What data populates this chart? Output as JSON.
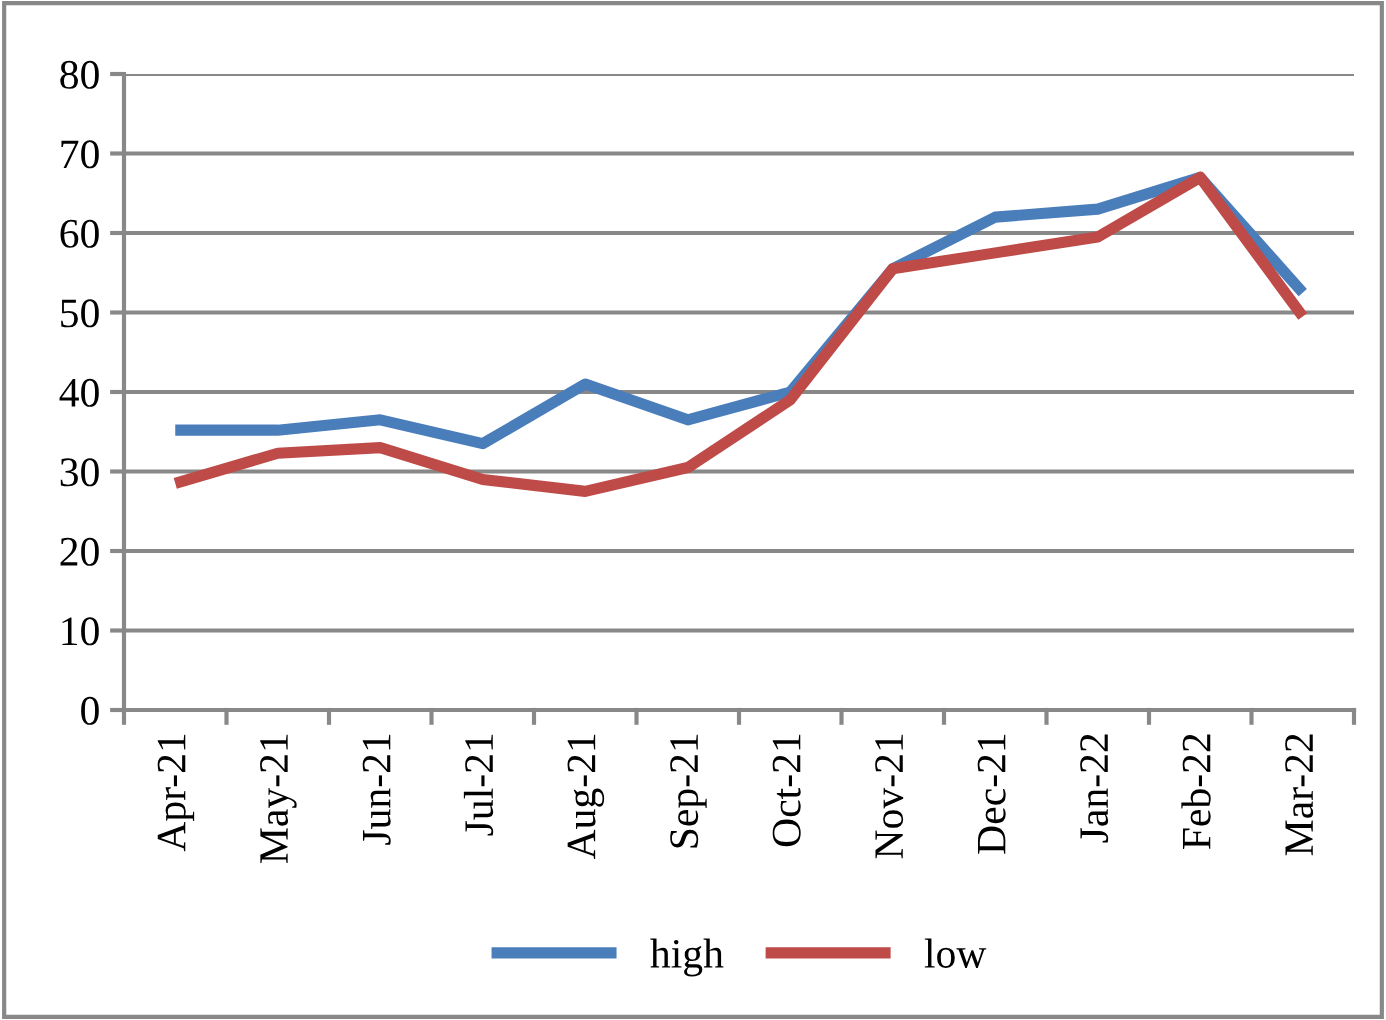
{
  "chart_data": {
    "type": "line",
    "categories": [
      "Apr-21",
      "May-21",
      "Jun-21",
      "Jul-21",
      "Aug-21",
      "Sep-21",
      "Oct-21",
      "Nov-21",
      "Dec-21",
      "Jan-22",
      "Feb-22",
      "Mar-22"
    ],
    "series": [
      {
        "name": "high",
        "color": "#4a7ebb",
        "values": [
          35.2,
          35.2,
          36.5,
          33.5,
          41,
          36.5,
          40,
          55.5,
          62,
          63,
          67,
          52.5
        ]
      },
      {
        "name": "low",
        "color": "#be4b48",
        "values": [
          28.5,
          32.3,
          33,
          29,
          27.5,
          30.5,
          39,
          55.5,
          57.5,
          59.5,
          67,
          49.5
        ]
      }
    ],
    "ylim": [
      0,
      80
    ],
    "yticks": [
      0,
      10,
      20,
      30,
      40,
      50,
      60,
      70,
      80
    ],
    "grid": "y",
    "legend": "bottom",
    "marker": "none",
    "line_style": "solid"
  }
}
